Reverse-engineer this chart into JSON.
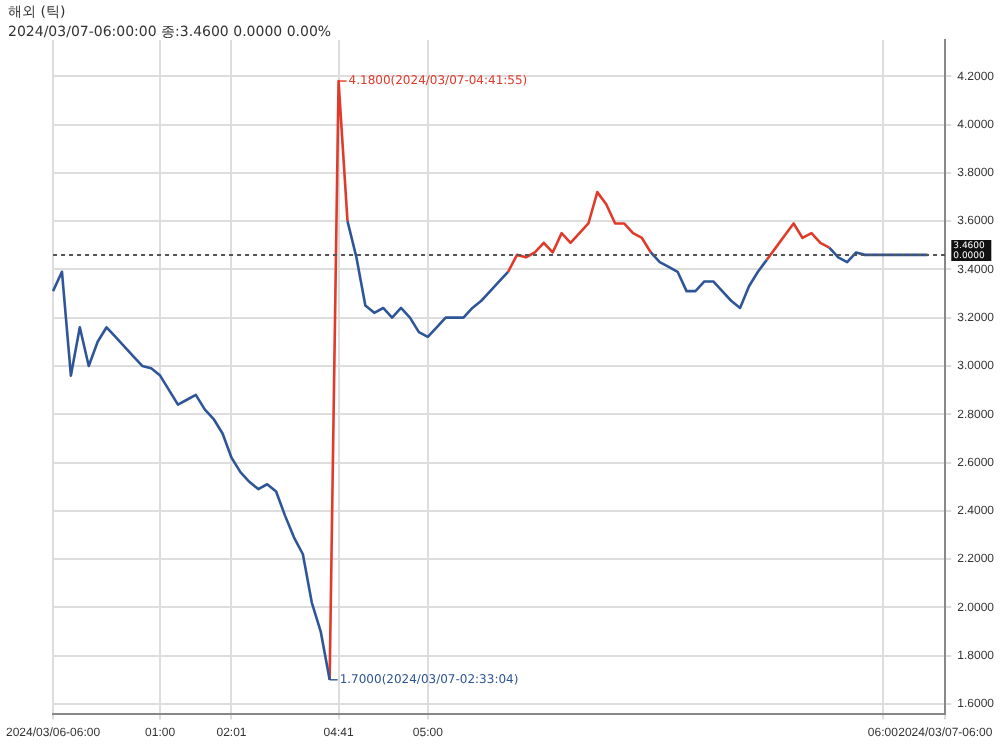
{
  "chart_data": {
    "type": "line",
    "title": "해외 (틱)",
    "subtitle": "2024/03/07-06:00:00 종:3.4600 0.0000 0.00%",
    "categories": [
      "2024/03/06-06:00",
      null,
      null,
      null,
      null,
      null,
      null,
      null,
      null,
      null,
      null,
      null,
      "01:00",
      null,
      null,
      null,
      null,
      null,
      null,
      null,
      "02:01",
      null,
      null,
      null,
      null,
      null,
      null,
      null,
      null,
      null,
      null,
      null,
      "04:41",
      null,
      null,
      null,
      null,
      null,
      null,
      null,
      null,
      null,
      "05:00",
      null,
      null,
      null,
      null,
      null,
      null,
      null,
      null,
      null,
      null,
      null,
      null,
      null,
      null,
      null,
      null,
      null,
      null,
      null,
      null,
      null,
      null,
      null,
      null,
      null,
      null,
      null,
      null,
      null,
      null,
      null,
      null,
      null,
      null,
      null,
      null,
      null,
      null,
      null,
      null,
      null,
      null,
      null,
      null,
      null,
      null,
      null,
      null,
      null,
      null,
      "06:00",
      null,
      null,
      null,
      null,
      null,
      null,
      "2024/03/07-06:00"
    ],
    "series": [
      {
        "color": "#2e5597",
        "values": [
          3.31,
          3.39,
          2.96,
          3.16,
          3.0,
          3.1,
          3.16,
          3.12,
          3.08,
          3.04,
          3.0,
          2.99,
          2.96,
          2.9,
          2.84,
          2.86,
          2.88,
          2.82,
          2.78,
          2.72,
          2.62,
          2.56,
          2.52,
          2.49,
          2.51,
          2.48,
          2.38,
          2.29,
          2.22,
          2.02,
          1.9,
          1.7,
          null,
          3.6,
          3.45,
          3.25,
          3.22,
          3.24,
          3.2,
          3.24,
          3.2,
          3.14,
          3.12,
          3.16,
          3.2,
          3.2,
          3.2,
          3.24,
          3.27,
          3.31,
          3.35,
          3.39,
          null,
          null,
          null,
          null,
          null,
          null,
          null,
          null,
          null,
          null,
          null,
          null,
          null,
          null,
          null,
          3.47,
          3.43,
          3.41,
          3.39,
          3.31,
          3.31,
          3.35,
          3.35,
          3.31,
          3.27,
          3.24,
          3.33,
          3.39,
          3.44,
          null,
          null,
          null,
          null,
          null,
          null,
          3.49,
          3.45,
          3.43,
          3.47,
          3.46,
          3.46,
          3.46,
          3.46,
          3.46,
          3.46,
          3.46,
          3.46,
          null,
          null
        ]
      },
      {
        "color": "#e03a2a",
        "values": [
          null,
          null,
          null,
          null,
          null,
          null,
          null,
          null,
          null,
          null,
          null,
          null,
          null,
          null,
          null,
          null,
          null,
          null,
          null,
          null,
          null,
          null,
          null,
          null,
          null,
          null,
          null,
          null,
          null,
          null,
          null,
          1.7,
          4.18,
          3.6,
          null,
          null,
          null,
          null,
          null,
          null,
          null,
          null,
          null,
          null,
          null,
          null,
          null,
          null,
          null,
          null,
          null,
          3.39,
          3.46,
          3.45,
          3.47,
          3.51,
          3.47,
          3.55,
          3.51,
          3.55,
          3.59,
          3.72,
          3.67,
          3.59,
          3.59,
          3.55,
          3.53,
          3.47,
          null,
          null,
          null,
          null,
          null,
          null,
          null,
          null,
          null,
          null,
          null,
          null,
          3.44,
          3.49,
          3.54,
          3.59,
          3.53,
          3.55,
          3.51,
          3.49,
          null,
          null,
          null,
          null,
          null,
          null,
          null,
          null,
          null,
          null,
          null,
          null,
          null
        ]
      }
    ],
    "ylim": [
      1.56,
      4.35
    ],
    "yticks": [
      {
        "value": 1.6,
        "label": "1.6000"
      },
      {
        "value": 1.8,
        "label": "1.8000"
      },
      {
        "value": 2.0,
        "label": "2.0000"
      },
      {
        "value": 2.2,
        "label": "2.2000"
      },
      {
        "value": 2.4,
        "label": "2.4000"
      },
      {
        "value": 2.6,
        "label": "2.6000"
      },
      {
        "value": 2.8,
        "label": "2.8000"
      },
      {
        "value": 3.0,
        "label": "3.0000"
      },
      {
        "value": 3.2,
        "label": "3.2000"
      },
      {
        "value": 3.4,
        "label": "3.4000"
      },
      {
        "value": 3.6,
        "label": "3.6000"
      },
      {
        "value": 3.8,
        "label": "3.8000"
      },
      {
        "value": 4.0,
        "label": "4.0000"
      },
      {
        "value": 4.2,
        "label": "4.2000"
      }
    ],
    "ref_lines": [
      {
        "axis": "y",
        "value": 3.46,
        "label": "3.4600",
        "color": "#555555",
        "line_style": "dotted"
      }
    ],
    "annotations": [
      "4.1800(2024/03/07-04:41:55)",
      "1.7000(2024/03/07-02:33:04)",
      "0.0000"
    ],
    "grid": true,
    "legend": false,
    "marker": "none",
    "line_style": "solid"
  }
}
